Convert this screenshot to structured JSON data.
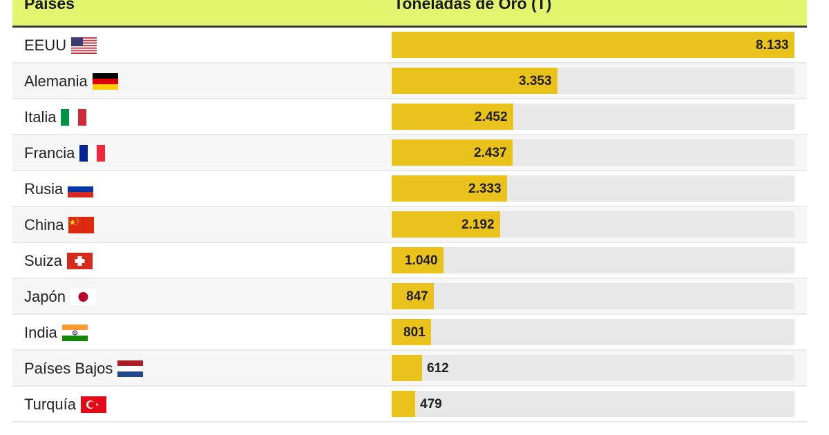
{
  "header": {
    "country_label": "Países",
    "value_label": "Toneladas de Oro (T)"
  },
  "colors": {
    "header_bg": "#e1f56f",
    "bar": "#eac21c",
    "track": "#e8e8e8"
  },
  "rows": [
    {
      "country": "EEUU",
      "flag": "us-flag",
      "value": "8.133"
    },
    {
      "country": "Alemania",
      "flag": "de-flag",
      "value": "3.353"
    },
    {
      "country": "Italia",
      "flag": "it-flag",
      "value": "2.452"
    },
    {
      "country": "Francia",
      "flag": "fr-flag",
      "value": "2.437"
    },
    {
      "country": "Rusia",
      "flag": "ru-flag",
      "value": "2.333"
    },
    {
      "country": "China",
      "flag": "cn-flag",
      "value": "2.192"
    },
    {
      "country": "Suiza",
      "flag": "ch-flag",
      "value": "1.040"
    },
    {
      "country": "Japón",
      "flag": "jp-flag",
      "value": "847"
    },
    {
      "country": "India",
      "flag": "in-flag",
      "value": "801"
    },
    {
      "country": "Países Bajos",
      "flag": "nl-flag",
      "value": "612"
    },
    {
      "country": "Turquía",
      "flag": "tr-flag",
      "value": "479"
    }
  ],
  "chart_data": {
    "type": "bar",
    "orientation": "horizontal",
    "title": "",
    "xlabel": "Toneladas de Oro (T)",
    "ylabel": "Países",
    "categories": [
      "EEUU",
      "Alemania",
      "Italia",
      "Francia",
      "Rusia",
      "China",
      "Suiza",
      "Japón",
      "India",
      "Países Bajos",
      "Turquía"
    ],
    "values": [
      8133,
      3353,
      2452,
      2437,
      2333,
      2192,
      1040,
      847,
      801,
      612,
      479
    ],
    "xlim": [
      0,
      8133
    ],
    "grid": false,
    "legend": false
  }
}
